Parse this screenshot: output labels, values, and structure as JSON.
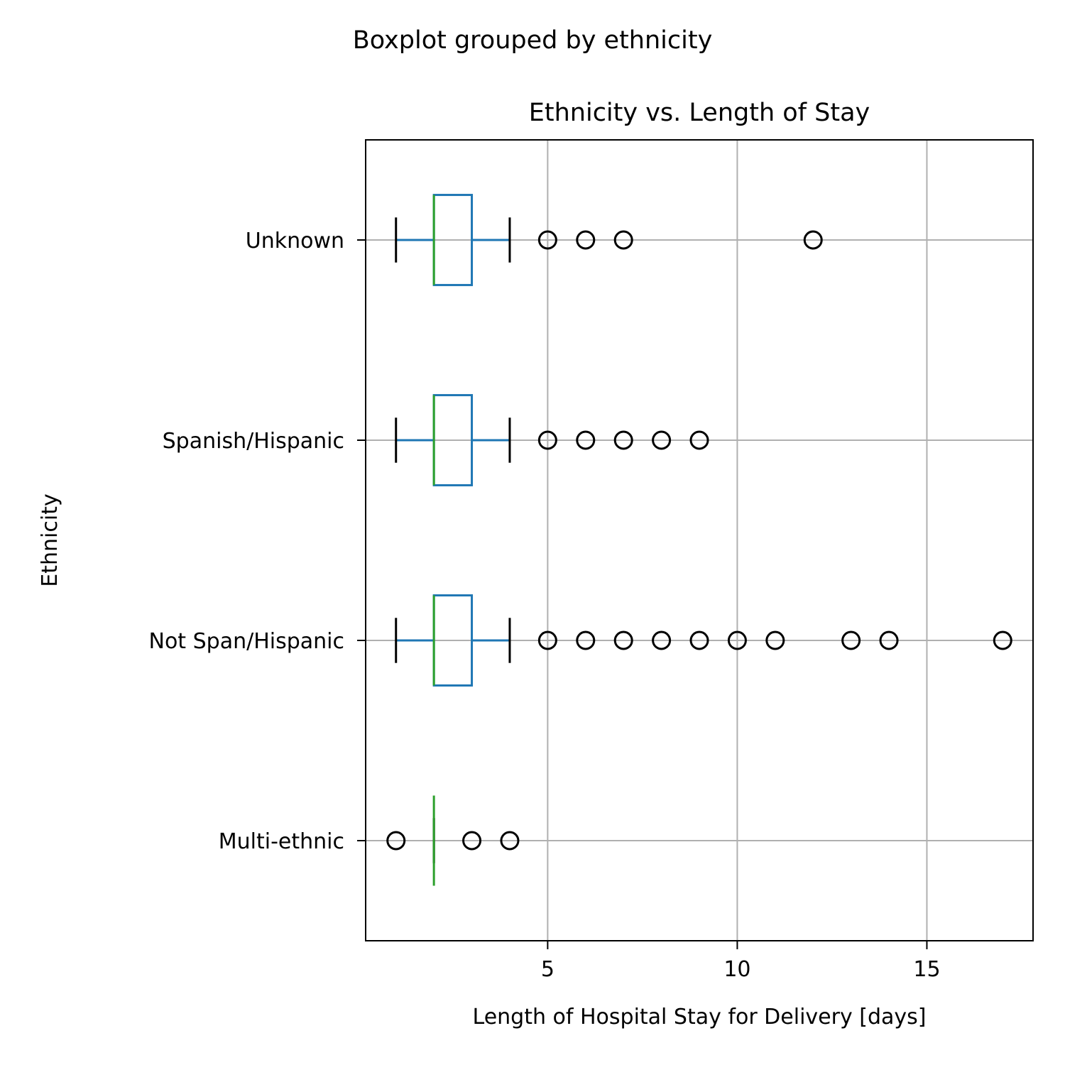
{
  "figure": {
    "suptitle": "Boxplot grouped by ethnicity"
  },
  "chart_data": {
    "type": "box",
    "orientation": "horizontal",
    "title": "Ethnicity vs. Length of Stay",
    "xlabel": "Length of Hospital Stay for Delivery [days]",
    "ylabel": "Ethnicity",
    "xlim": [
      0.2,
      17.8
    ],
    "xticks": [
      5,
      10,
      15
    ],
    "grid": true,
    "colors": {
      "box": "#1f77b4",
      "median": "#2ca02c",
      "caps": "#000000",
      "fliers": "#000000",
      "grid": "#b0b0b0"
    },
    "categories": [
      "Multi-ethnic",
      "Not Span/Hispanic",
      "Spanish/Hispanic",
      "Unknown"
    ],
    "boxes": [
      {
        "name": "Multi-ethnic",
        "whislo": 2,
        "q1": 2,
        "med": 2,
        "q3": 2,
        "whishi": 2,
        "fliers": [
          1,
          3,
          4
        ]
      },
      {
        "name": "Not Span/Hispanic",
        "whislo": 1,
        "q1": 2,
        "med": 2,
        "q3": 3,
        "whishi": 4,
        "fliers": [
          5,
          6,
          7,
          8,
          9,
          10,
          11,
          13,
          14,
          17
        ]
      },
      {
        "name": "Spanish/Hispanic",
        "whislo": 1,
        "q1": 2,
        "med": 2,
        "q3": 3,
        "whishi": 4,
        "fliers": [
          5,
          6,
          7,
          8,
          9
        ]
      },
      {
        "name": "Unknown",
        "whislo": 1,
        "q1": 2,
        "med": 2,
        "q3": 3,
        "whishi": 4,
        "fliers": [
          5,
          6,
          7,
          12
        ]
      }
    ]
  }
}
